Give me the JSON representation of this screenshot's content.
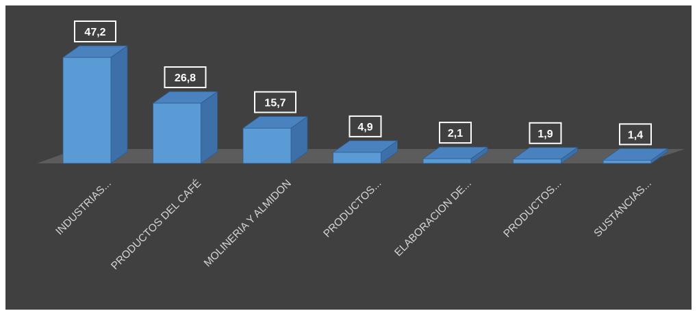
{
  "chart_data": {
    "type": "bar",
    "categories": [
      "INDUSTRIAS...",
      "PRODUCTOS DEL CAFÉ",
      "MOLINERIA Y ALMIDON",
      "PRODUCTOS...",
      "ELABORACION DE...",
      "PRODUCTOS...",
      "SUSTANCIAS..."
    ],
    "values": [
      47.2,
      26.8,
      15.7,
      4.9,
      2.1,
      1.9,
      1.4
    ],
    "value_labels": [
      "47,2",
      "26,8",
      "15,7",
      "4,9",
      "2,1",
      "1,9",
      "1,4"
    ],
    "title": "",
    "xlabel": "",
    "ylabel": "",
    "ylim": [
      0,
      50
    ],
    "grid": false,
    "legend": "none",
    "style": "3d-column",
    "colors": {
      "background": "#404040",
      "floor": "#5c5c5c",
      "bar_front": "#5b9bd5",
      "bar_top": "#4a82bf",
      "bar_side": "#3d6fa8",
      "label_text": "#ffffff",
      "label_border": "#ffffff",
      "category_text": "#d4d4d4"
    }
  }
}
